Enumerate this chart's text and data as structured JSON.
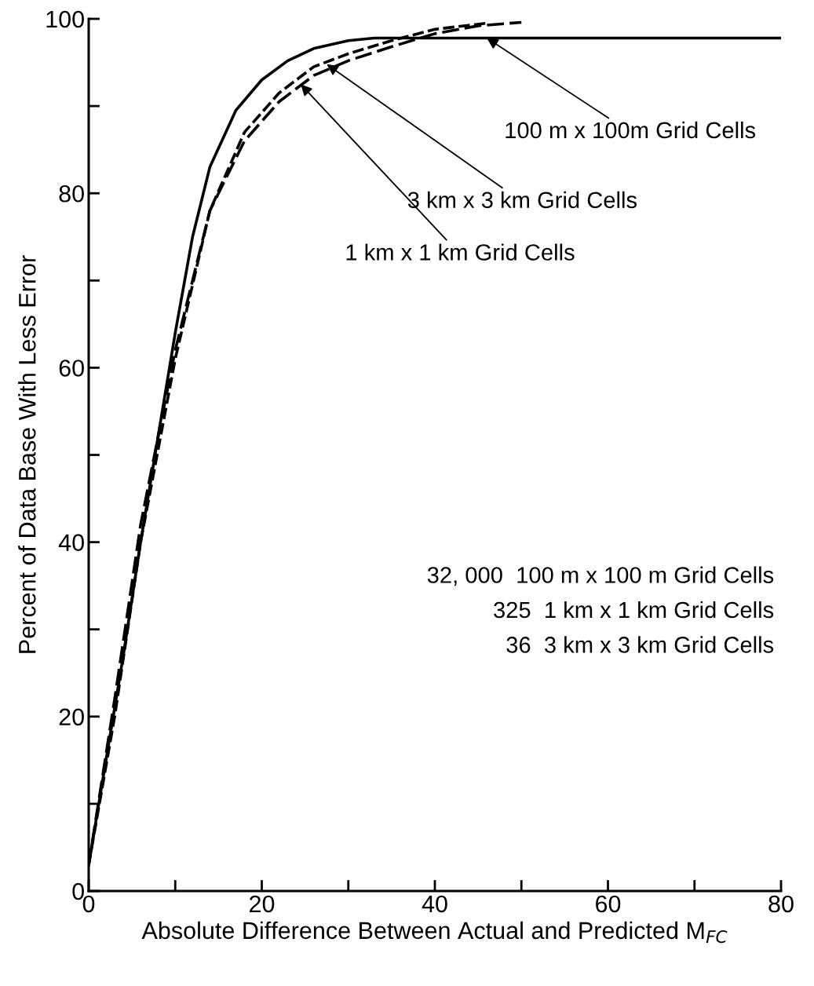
{
  "chart_data": {
    "type": "line",
    "xlabel": "Absolute Difference Between Actual and Predicted M$_{FC}$",
    "ylabel": "Percent of Data Base With Less Error",
    "xlim": [
      0,
      80
    ],
    "ylim": [
      0,
      100
    ],
    "xticks": [
      0,
      {
        "value": 10,
        "label": null
      },
      20,
      {
        "value": 30,
        "label": null
      },
      40,
      {
        "value": 50,
        "label": null
      },
      60,
      {
        "value": 70,
        "label": null
      },
      80
    ],
    "yticks": [
      0,
      {
        "value": 10,
        "label": null
      },
      20,
      {
        "value": 30,
        "label": null
      },
      40,
      {
        "value": 50,
        "label": null
      },
      60,
      {
        "value": 70,
        "label": null
      },
      80,
      {
        "value": 90,
        "label": null
      },
      100
    ],
    "grid": false,
    "legend": false,
    "marker": "none",
    "series": [
      {
        "color": "#000000",
        "line_style": "solid",
        "x": [
          0,
          2,
          4,
          6,
          8,
          10,
          12,
          14,
          17,
          20,
          23,
          26,
          30,
          33,
          40,
          80
        ],
        "values": [
          3,
          15,
          27,
          40,
          52,
          64,
          75,
          83,
          89.5,
          93,
          95.2,
          96.6,
          97.5,
          97.8,
          97.8,
          97.8
        ]
      },
      {
        "color": "#000000",
        "line_style": "dashed",
        "x": [
          0,
          3,
          6,
          10,
          14,
          18,
          22,
          26,
          30,
          35,
          40,
          46
        ],
        "values": [
          3,
          20,
          40,
          61,
          78,
          87,
          91.5,
          94.5,
          96,
          97.5,
          98.8,
          99.5
        ]
      },
      {
        "color": "#000000",
        "line_style": "dashed",
        "x": [
          0,
          3,
          6,
          10,
          14,
          18,
          22,
          26,
          30,
          35,
          40,
          45,
          50
        ],
        "values": [
          3,
          22,
          42,
          62,
          78,
          86,
          90.5,
          93.5,
          95.2,
          96.8,
          98.3,
          99.2,
          99.6
        ]
      }
    ],
    "annotations": [
      {
        "text": "100 m x 100m Grid Cells",
        "x": 46,
        "y": 97.8
      },
      {
        "text": "3 km x 3 km Grid Cells",
        "x": 27.5,
        "y": 94.8
      },
      {
        "text": "1 km x 1 km Grid Cells",
        "x": 24.5,
        "y": 92.5
      },
      "32, 000  100 m x 100 m Grid Cells",
      "325  1 km x 1 km Grid Cells",
      "36  3 km x 3 km Grid Cells"
    ]
  }
}
